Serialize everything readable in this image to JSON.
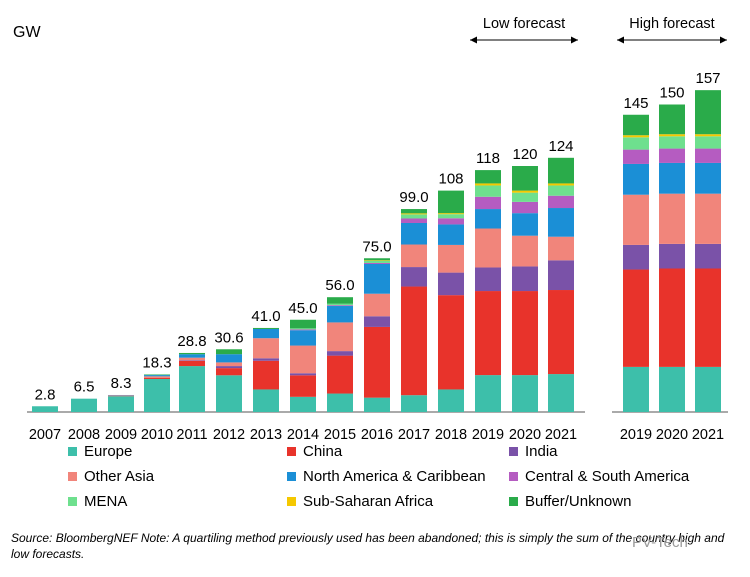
{
  "chart_data": {
    "type": "bar",
    "stacked": true,
    "unit_label": "GW",
    "categories": [
      "2007",
      "2008",
      "2009",
      "2010",
      "2011",
      "2012",
      "2013",
      "2014",
      "2015",
      "2016",
      "2017",
      "2018",
      "2019",
      "2020",
      "2021",
      "2019",
      "2020",
      "2021"
    ],
    "group_labels": [
      "Low forecast",
      "High forecast"
    ],
    "totals": [
      "2.8",
      "6.5",
      "8.3",
      "18.3",
      "28.8",
      "30.6",
      "41.0",
      "45.0",
      "56.0",
      "75.0",
      "99.0",
      "108",
      "118",
      "120",
      "124",
      "145",
      "150",
      "157"
    ],
    "series": [
      {
        "name": "Europe",
        "color": "#3dbfaa",
        "values": [
          2.8,
          6.5,
          7.7,
          16.1,
          22.4,
          17.9,
          11.0,
          7.4,
          9.0,
          7.0,
          8.2,
          11.0,
          18.0,
          18.0,
          18.5,
          22.0,
          22.0,
          22.0
        ]
      },
      {
        "name": "China",
        "color": "#e8332b",
        "values": [
          0,
          0,
          0.1,
          0.5,
          2.6,
          3.5,
          14.0,
          10.5,
          18.5,
          34.5,
          53.0,
          46.0,
          41.0,
          41.0,
          41.0,
          47.5,
          48.0,
          48.0
        ]
      },
      {
        "name": "India",
        "color": "#7a52a8",
        "values": [
          0,
          0,
          0,
          0,
          0.3,
          1.0,
          1.2,
          1.0,
          2.2,
          5.2,
          9.5,
          11.0,
          11.5,
          12.0,
          14.5,
          12.0,
          12.0,
          12.0
        ]
      },
      {
        "name": "Other Asia",
        "color": "#f1857b",
        "values": [
          0,
          0,
          0.3,
          0.8,
          1.2,
          1.8,
          9.8,
          13.5,
          14.0,
          11.0,
          11.0,
          13.5,
          19.0,
          15.0,
          11.5,
          24.5,
          24.5,
          24.5
        ]
      },
      {
        "name": "North America & Caribbean",
        "color": "#1b8fd6",
        "values": [
          0,
          0,
          0.2,
          0.6,
          1.7,
          4.0,
          4.5,
          7.5,
          8.0,
          14.5,
          10.5,
          10.0,
          9.5,
          11.0,
          14.0,
          15.0,
          15.0,
          15.0
        ]
      },
      {
        "name": "Central & South America",
        "color": "#b55cc1",
        "values": [
          0,
          0,
          0,
          0,
          0,
          0,
          0,
          0.4,
          0.4,
          0.5,
          2.2,
          3.0,
          6.0,
          5.5,
          6.0,
          7.0,
          7.0,
          7.0
        ]
      },
      {
        "name": "MENA",
        "color": "#6ee08e",
        "values": [
          0,
          0,
          0,
          0,
          0,
          0,
          0,
          0.5,
          0.7,
          1.0,
          2.0,
          2.0,
          5.5,
          4.5,
          5.0,
          6.0,
          6.0,
          6.0
        ]
      },
      {
        "name": "Sub-Saharan Africa",
        "color": "#f5c800",
        "values": [
          0,
          0,
          0,
          0,
          0,
          0,
          0,
          0,
          0,
          0.3,
          0.5,
          0.5,
          1.0,
          1.0,
          1.0,
          1.0,
          1.0,
          1.0
        ]
      },
      {
        "name": "Buffer/Unknown",
        "color": "#2aab4a",
        "values": [
          0,
          0,
          0,
          0.3,
          0.6,
          2.4,
          0.5,
          4.2,
          3.2,
          1.0,
          2.1,
          11.0,
          6.5,
          12.0,
          12.5,
          10.0,
          14.5,
          21.5
        ]
      }
    ],
    "ylim": [
      0,
      160
    ],
    "grid": false,
    "legend_position": "bottom",
    "note": "Source: BloombergNEF Note: A quartiling method previously used has been abandoned; this is simply the sum of the country high and low forecasts.",
    "watermark": "PV-Tech"
  }
}
